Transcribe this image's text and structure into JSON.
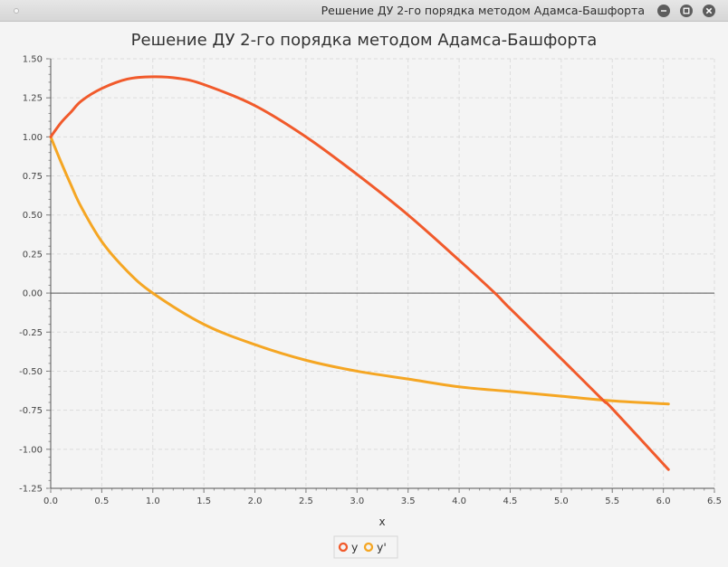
{
  "window": {
    "title": "Решение ДУ 2-го порядка методом Адамса-Башфорта",
    "buttons": [
      "minimize-icon",
      "maximize-icon",
      "close-icon"
    ]
  },
  "chart_data": {
    "type": "line",
    "title": "Решение ДУ 2-го порядка методом Адамса-Башфорта",
    "xlabel": "x",
    "ylabel": "",
    "xlim": [
      0,
      6.5
    ],
    "ylim": [
      -1.25,
      1.5
    ],
    "x_ticks": [
      "0.0",
      "0.5",
      "1.0",
      "1.5",
      "2.0",
      "2.5",
      "3.0",
      "3.5",
      "4.0",
      "4.5",
      "5.0",
      "5.5",
      "6.0",
      "6.5"
    ],
    "y_ticks": [
      "1.50",
      "1.25",
      "1.00",
      "0.75",
      "0.50",
      "0.25",
      "0.00",
      "-0.25",
      "-0.50",
      "-0.75",
      "-1.00",
      "-1.25"
    ],
    "grid": true,
    "legend_position": "bottom-center",
    "series": [
      {
        "name": "y",
        "color": "#f15a2b",
        "x": [
          0.0,
          0.1,
          0.2,
          0.3,
          0.5,
          0.75,
          1.0,
          1.25,
          1.5,
          2.0,
          2.5,
          3.0,
          3.5,
          4.0,
          4.35,
          4.5,
          5.0,
          5.4,
          5.5,
          6.05
        ],
        "y": [
          1.0,
          1.09,
          1.16,
          1.23,
          1.31,
          1.37,
          1.385,
          1.375,
          1.335,
          1.2,
          1.0,
          0.76,
          0.5,
          0.21,
          0.0,
          -0.1,
          -0.42,
          -0.68,
          -0.74,
          -1.13
        ]
      },
      {
        "name": "y'",
        "color": "#f5a623",
        "x": [
          0.0,
          0.1,
          0.2,
          0.3,
          0.5,
          0.75,
          1.0,
          1.5,
          2.0,
          2.5,
          3.0,
          3.5,
          4.0,
          4.5,
          5.0,
          5.5,
          6.05
        ],
        "y": [
          1.0,
          0.84,
          0.69,
          0.55,
          0.33,
          0.14,
          0.0,
          -0.2,
          -0.33,
          -0.43,
          -0.5,
          -0.55,
          -0.6,
          -0.63,
          -0.66,
          -0.69,
          -0.71
        ]
      }
    ]
  }
}
